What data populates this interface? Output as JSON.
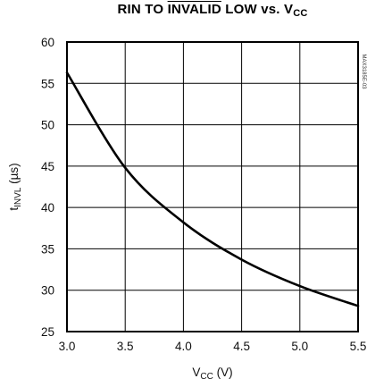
{
  "chart_data": {
    "type": "line",
    "title": {
      "part1": "RIN TO ",
      "overline": "INVALID",
      "part2": " LOW vs. V",
      "sub": "CC"
    },
    "xlabel": {
      "main": "V",
      "sub": "CC",
      "unit": " (V)"
    },
    "ylabel": {
      "main": "t",
      "sub": "INVL",
      "unit": " (µs)"
    },
    "xlim": [
      3.0,
      5.5
    ],
    "ylim": [
      25,
      60
    ],
    "xticks": [
      3.0,
      3.5,
      4.0,
      4.5,
      5.0,
      5.5
    ],
    "xtick_labels": [
      "3.0",
      "3.5",
      "4.0",
      "4.5",
      "5.0",
      "5.5"
    ],
    "yticks": [
      25,
      30,
      35,
      40,
      45,
      50,
      55,
      60
    ],
    "ytick_labels": [
      "25",
      "30",
      "35",
      "40",
      "45",
      "50",
      "55",
      "60"
    ],
    "grid": true,
    "series": [
      {
        "x": [
          3.0,
          3.5,
          4.0,
          4.5,
          5.0,
          5.5
        ],
        "y": [
          56.3,
          44.8,
          38.2,
          33.7,
          30.5,
          28.1
        ]
      }
    ],
    "side_code": "MAX3185E-03",
    "line_color": "#000000"
  }
}
